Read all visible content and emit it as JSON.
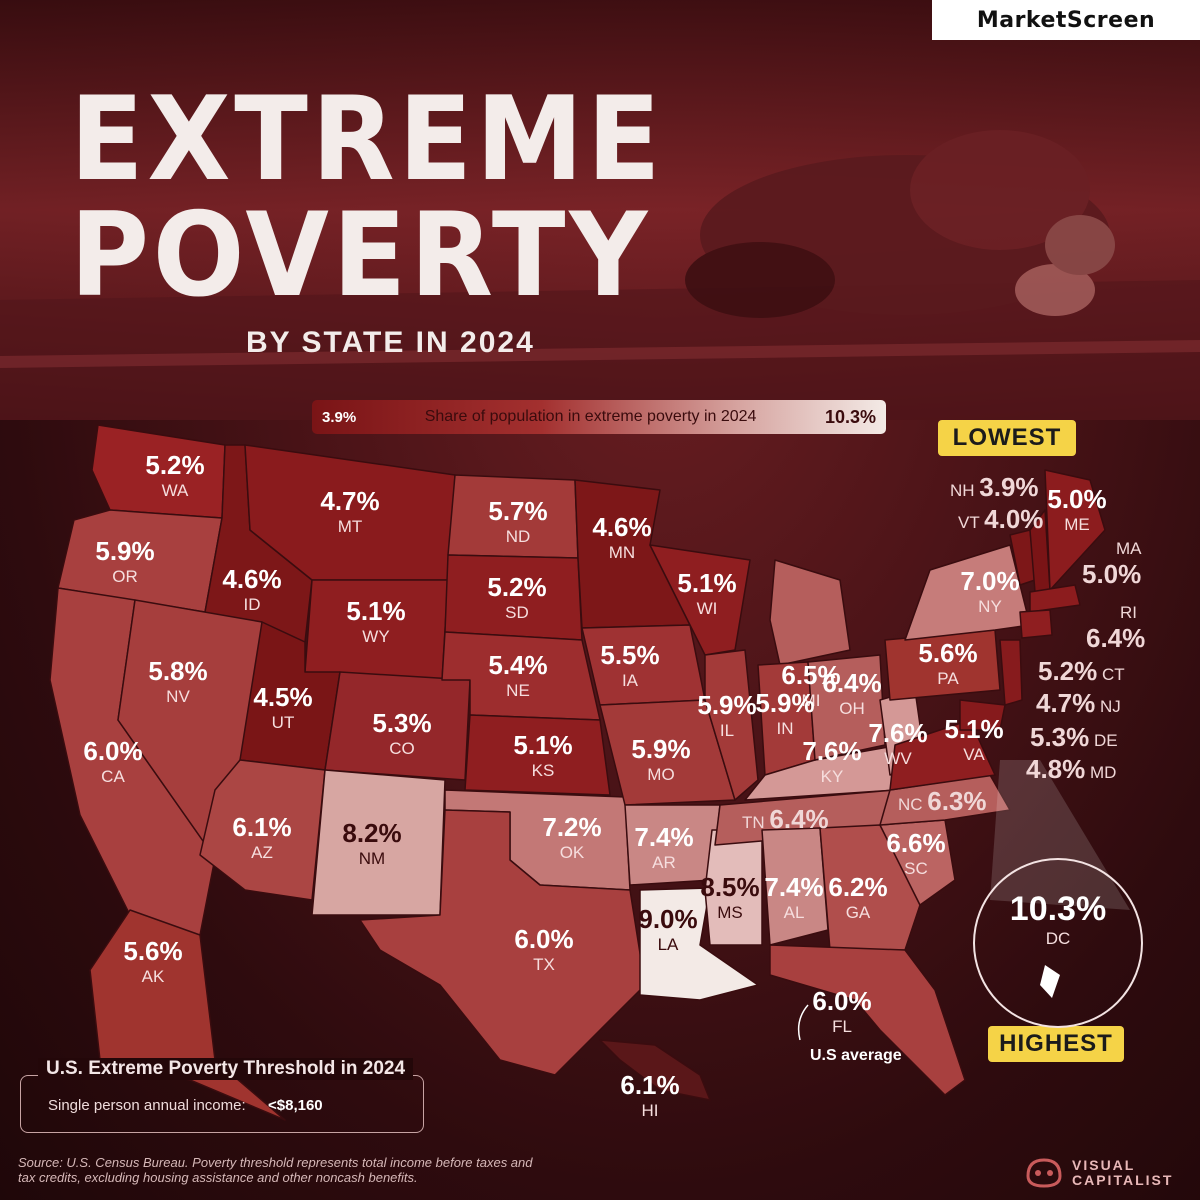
{
  "brand": "MarketScreen",
  "title_line1": "EXTREME",
  "title_line2": "POVERTY",
  "subtitle": "BY STATE IN 2024",
  "legend": {
    "min": "3.9%",
    "title": "Share of population in extreme poverty in 2024",
    "max": "10.3%"
  },
  "badges": {
    "lowest": "LOWEST",
    "highest": "HIGHEST"
  },
  "us_average_label": "U.S average",
  "threshold": {
    "title": "U.S. Extreme Poverty Threshold in 2024",
    "text": "Single person annual income:",
    "value": "<$8,160"
  },
  "source": "Source: U.S. Census Bureau. Poverty threshold represents total income before taxes and tax credits, excluding housing assistance and other noncash benefits.",
  "publisher": {
    "line1": "VISUAL",
    "line2": "CAPITALIST"
  },
  "colors": {
    "low": "#7a1416",
    "mid": "#a3302f",
    "high": "#f3eae6",
    "badge": "#f5d347"
  },
  "chart_data": {
    "type": "choropleth",
    "title": "EXTREME POVERTY BY STATE IN 2024",
    "legend_title": "Share of population in extreme poverty in 2024",
    "scale": [
      3.9,
      10.3
    ],
    "states": [
      {
        "state": "WA",
        "value": "5.2%"
      },
      {
        "state": "OR",
        "value": "5.9%"
      },
      {
        "state": "CA",
        "value": "6.0%"
      },
      {
        "state": "ID",
        "value": "4.6%"
      },
      {
        "state": "NV",
        "value": "5.8%"
      },
      {
        "state": "MT",
        "value": "4.7%"
      },
      {
        "state": "WY",
        "value": "5.1%"
      },
      {
        "state": "UT",
        "value": "4.5%"
      },
      {
        "state": "AZ",
        "value": "6.1%"
      },
      {
        "state": "CO",
        "value": "5.3%"
      },
      {
        "state": "NM",
        "value": "8.2%"
      },
      {
        "state": "ND",
        "value": "5.7%"
      },
      {
        "state": "SD",
        "value": "5.2%"
      },
      {
        "state": "NE",
        "value": "5.4%"
      },
      {
        "state": "KS",
        "value": "5.1%"
      },
      {
        "state": "OK",
        "value": "7.2%"
      },
      {
        "state": "TX",
        "value": "6.0%"
      },
      {
        "state": "MN",
        "value": "4.6%"
      },
      {
        "state": "IA",
        "value": "5.5%"
      },
      {
        "state": "MO",
        "value": "5.9%"
      },
      {
        "state": "AR",
        "value": "7.4%"
      },
      {
        "state": "LA",
        "value": "9.0%"
      },
      {
        "state": "WI",
        "value": "5.1%"
      },
      {
        "state": "IL",
        "value": "5.9%"
      },
      {
        "state": "MS",
        "value": "8.5%"
      },
      {
        "state": "MI",
        "value": "6.5%"
      },
      {
        "state": "IN",
        "value": "5.9%"
      },
      {
        "state": "KY",
        "value": "7.6%"
      },
      {
        "state": "TN",
        "value": "6.4%"
      },
      {
        "state": "AL",
        "value": "7.4%"
      },
      {
        "state": "OH",
        "value": "6.4%"
      },
      {
        "state": "WV",
        "value": "7.6%"
      },
      {
        "state": "GA",
        "value": "6.2%"
      },
      {
        "state": "FL",
        "value": "6.0%"
      },
      {
        "state": "SC",
        "value": "6.6%"
      },
      {
        "state": "NC",
        "value": "6.3%"
      },
      {
        "state": "VA",
        "value": "5.1%"
      },
      {
        "state": "PA",
        "value": "5.6%"
      },
      {
        "state": "NY",
        "value": "7.0%"
      },
      {
        "state": "VT",
        "value": "4.0%"
      },
      {
        "state": "NH",
        "value": "3.9%"
      },
      {
        "state": "ME",
        "value": "5.0%"
      },
      {
        "state": "MA",
        "value": "5.0%"
      },
      {
        "state": "RI",
        "value": "6.4%"
      },
      {
        "state": "CT",
        "value": "5.2%"
      },
      {
        "state": "NJ",
        "value": "4.7%"
      },
      {
        "state": "DE",
        "value": "5.3%"
      },
      {
        "state": "MD",
        "value": "4.8%"
      },
      {
        "state": "DC",
        "value": "10.3%"
      },
      {
        "state": "AK",
        "value": "5.6%"
      },
      {
        "state": "HI",
        "value": "6.1%"
      }
    ]
  }
}
